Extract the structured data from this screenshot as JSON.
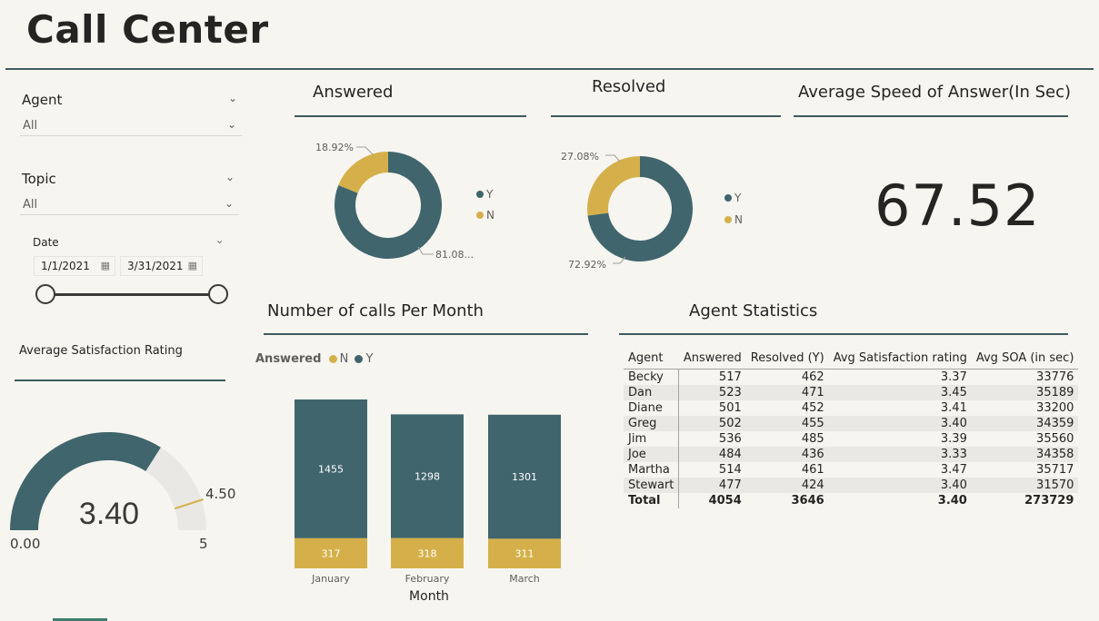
{
  "page": {
    "title": "Call Center"
  },
  "colors": {
    "dark": "#40656c",
    "gold": "#d5b04a",
    "track": "#e9e8e4",
    "line": "#3e5a5e"
  },
  "filters": {
    "agent": {
      "label": "Agent",
      "value": "All"
    },
    "topic": {
      "label": "Topic",
      "value": "All"
    },
    "date": {
      "label": "Date",
      "start": "1/1/2021",
      "end": "3/31/2021"
    }
  },
  "satisfaction": {
    "title": "Average Satisfaction Rating",
    "value": "3.40",
    "min": "0.00",
    "max": "5",
    "target": "4.50",
    "value_num": 3.4,
    "max_num": 5,
    "target_num": 4.5
  },
  "answered": {
    "title": "Answered",
    "n_label": "18.92%",
    "y_label": "81.08...",
    "n_pct": 18.92,
    "y_pct": 81.08,
    "legend": [
      "Y",
      "N"
    ]
  },
  "resolved": {
    "title": "Resolved",
    "n_label": "27.08%",
    "y_label": "72.92%",
    "n_pct": 27.08,
    "y_pct": 72.92,
    "legend": [
      "Y",
      "N"
    ]
  },
  "asa": {
    "title": "Average Speed of Answer(In Sec)",
    "value": "67.52"
  },
  "monthly": {
    "title": "Number of calls Per Month",
    "legend_title": "Answered",
    "legend_n": "N",
    "legend_y": "Y",
    "xlabel": "Month"
  },
  "chart_data": {
    "type": "bar",
    "stacked": true,
    "categories": [
      "January",
      "February",
      "March"
    ],
    "series": [
      {
        "name": "N",
        "values": [
          317,
          318,
          311
        ]
      },
      {
        "name": "Y",
        "values": [
          1455,
          1298,
          1301
        ]
      }
    ],
    "xlabel": "Month"
  },
  "agent_stats": {
    "title": "Agent Statistics",
    "columns": [
      "Agent",
      "Answered",
      "Resolved (Y)",
      "Avg Satisfaction rating",
      "Avg SOA (in sec)"
    ],
    "rows": [
      [
        "Becky",
        "517",
        "462",
        "3.37",
        "33776"
      ],
      [
        "Dan",
        "523",
        "471",
        "3.45",
        "35189"
      ],
      [
        "Diane",
        "501",
        "452",
        "3.41",
        "33200"
      ],
      [
        "Greg",
        "502",
        "455",
        "3.40",
        "34359"
      ],
      [
        "Jim",
        "536",
        "485",
        "3.39",
        "35560"
      ],
      [
        "Joe",
        "484",
        "436",
        "3.33",
        "34358"
      ],
      [
        "Martha",
        "514",
        "461",
        "3.47",
        "35717"
      ],
      [
        "Stewart",
        "477",
        "424",
        "3.40",
        "31570"
      ]
    ],
    "total": [
      "Total",
      "4054",
      "3646",
      "3.40",
      "273729"
    ]
  }
}
